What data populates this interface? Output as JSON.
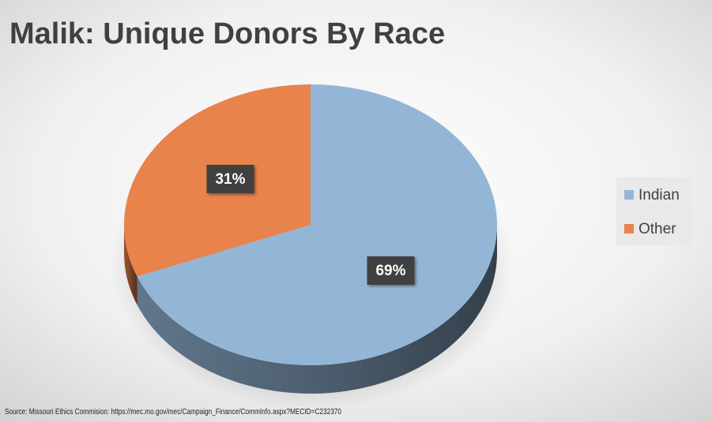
{
  "chart_data": {
    "type": "pie",
    "title": "Malik: Unique Donors By Race",
    "categories": [
      "Indian",
      "Other"
    ],
    "values": [
      69,
      31
    ],
    "value_labels": [
      "69%",
      "31%"
    ],
    "colors": [
      "#94b6d6",
      "#e8834c"
    ],
    "legend": "right",
    "source": "Source: Missouri Ethics Commision: https://mec.mo.gov/mec/Campaign_Finance/CommInfo.aspx?MECID=C232370"
  }
}
